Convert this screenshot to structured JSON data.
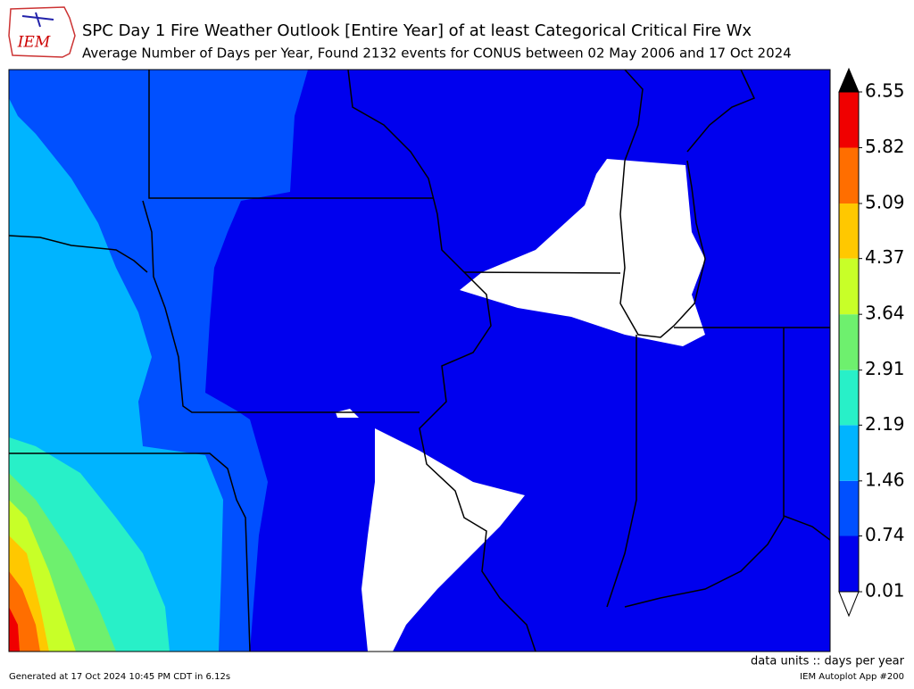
{
  "header": {
    "logo": "IEM",
    "title": "SPC Day 1 Fire Weather Outlook [Entire Year] of at least Categorical Critical Fire Wx",
    "subtitle": "Average Number of Days per Year, Found 2132 events for CONUS between 02 May 2006 and 17 Oct 2024"
  },
  "colorbar": {
    "ticks": [
      0.01,
      0.74,
      1.46,
      2.19,
      2.91,
      3.64,
      4.37,
      5.09,
      5.82,
      6.55
    ],
    "colors": [
      "#0000ee",
      "#0050ff",
      "#00b4ff",
      "#28f0c8",
      "#6ef06e",
      "#c8ff28",
      "#ffc800",
      "#ff6e00",
      "#f00000"
    ],
    "over_color": "#000000",
    "under_color": "#ffffff",
    "units_label": "data units :: days per year"
  },
  "footer": {
    "generated": "Generated at 17 Oct 2024 10:45 PM CDT in 6.12s",
    "app": "IEM Autoplot App #200"
  }
}
